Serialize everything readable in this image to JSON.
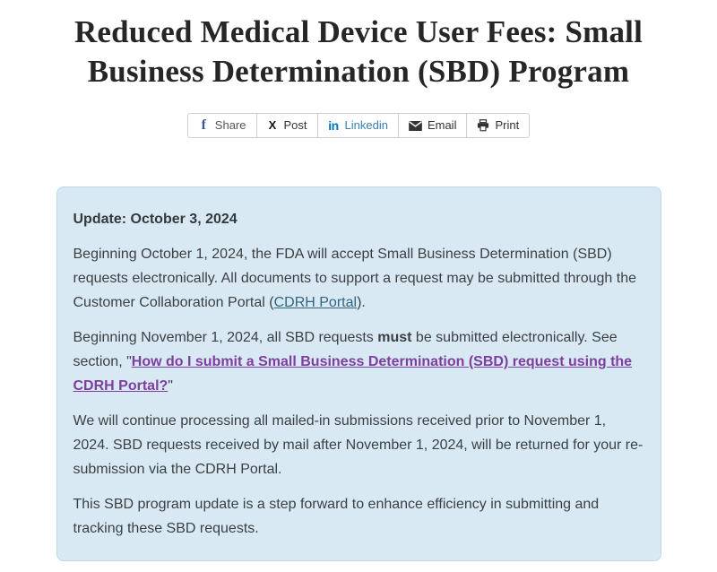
{
  "page": {
    "title_lines": [
      "Reduced Medical Device User Fees: Small",
      "Business Determination (SBD) Program"
    ],
    "title_full": "Reduced Medical Device User Fees: Small Business Determination (SBD) Program"
  },
  "share_bar": {
    "buttons": [
      {
        "name": "share-facebook-button",
        "label": "Share",
        "icon": "facebook-icon",
        "icon_color": "#3b5998",
        "label_color": "#54585a"
      },
      {
        "name": "share-x-post-button",
        "label": "Post",
        "icon": "x-icon",
        "icon_color": "#0f1419",
        "label_color": "#333333"
      },
      {
        "name": "share-linkedin-button",
        "label": "Linkedin",
        "icon": "linkedin-icon",
        "icon_color": "#0077b5",
        "label_color": "#3d7fb4"
      },
      {
        "name": "share-email-button",
        "label": "Email",
        "icon": "email-icon",
        "icon_color": "#333333",
        "label_color": "#333333"
      },
      {
        "name": "share-print-button",
        "label": "Print",
        "icon": "print-icon",
        "icon_color": "#333333",
        "label_color": "#333333"
      }
    ]
  },
  "update_box": {
    "heading": "Update: October 3, 2024",
    "paragraphs": [
      {
        "segments": [
          {
            "type": "text",
            "text": "Beginning October 1, 2024, the FDA will accept Small Business Determination (SBD) requests electronically. All documents to support a request may be submitted through the Customer Collaboration Portal ("
          },
          {
            "type": "link",
            "name": "cdrh-portal-link",
            "text": "CDRH Portal"
          },
          {
            "type": "text",
            "text": ")."
          }
        ]
      },
      {
        "segments": [
          {
            "type": "text",
            "text": "Beginning November 1, 2024, all SBD requests "
          },
          {
            "type": "bold",
            "text": "must"
          },
          {
            "type": "text",
            "text": " be submitted electronically. See section, \""
          },
          {
            "type": "visited-link",
            "name": "how-to-submit-sbd-link",
            "text": "How do I submit a Small Business Determination (SBD) request using the CDRH Portal?"
          },
          {
            "type": "text",
            "text": "\""
          }
        ]
      },
      {
        "segments": [
          {
            "type": "text",
            "text": "We will continue processing all mailed-in submissions received prior to November 1, 2024. SBD requests received by mail after November 1, 2024, will be returned for your re-submission via the CDRH Portal."
          }
        ]
      },
      {
        "segments": [
          {
            "type": "text",
            "text": "This SBD program update is a step forward to enhance efficiency in submitting and tracking these SBD requests."
          }
        ]
      }
    ]
  },
  "colors": {
    "box_background": "#d8e9f4",
    "box_border": "#bed9ea",
    "link": "#33647f",
    "visited_link": "#7d3f9d",
    "body_text": "#3c4043",
    "title_text": "#262626"
  }
}
